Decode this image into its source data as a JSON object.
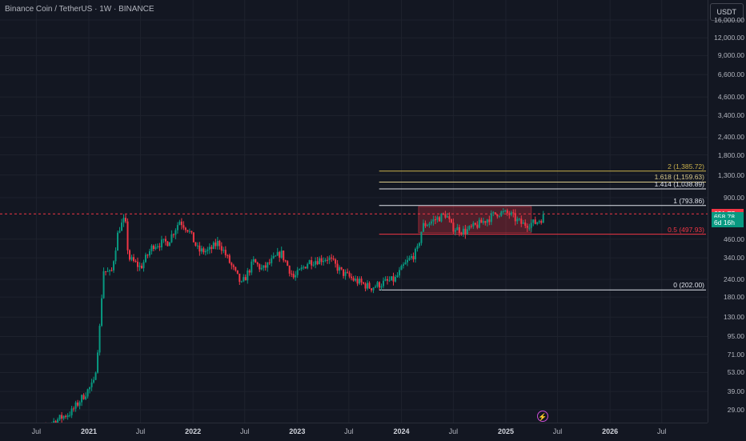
{
  "header": {
    "title": "Binance Coin / TetherUS · 1W · BINANCE"
  },
  "price_axis": {
    "currency": "USDT",
    "ticks": [
      "16,000.00",
      "12,000.00",
      "9,000.00",
      "6,600.00",
      "4,600.00",
      "3,400.00",
      "2,400.00",
      "1,800.00",
      "1,300.00",
      "900.00",
      "460.00",
      "340.00",
      "240.00",
      "180.00",
      "130.00",
      "95.00",
      "71.00",
      "53.00",
      "39.00",
      "29.00"
    ],
    "tick_values": [
      16000,
      12000,
      9000,
      6600,
      4600,
      3400,
      2400,
      1800,
      1300,
      900,
      460,
      340,
      240,
      180,
      130,
      95,
      71,
      53,
      39,
      29
    ],
    "badges": [
      {
        "label": "691.77",
        "value": 691.77,
        "color": "#f23645"
      },
      {
        "label": "658.78",
        "value": 658.78,
        "color": "#089981"
      },
      {
        "label": "6d 16h",
        "value": 600,
        "color": "#089981"
      }
    ]
  },
  "time_axis": {
    "ticks": [
      {
        "label": "Jul",
        "date": "2020-07-01",
        "year": false
      },
      {
        "label": "2021",
        "date": "2021-01-01",
        "year": true
      },
      {
        "label": "Jul",
        "date": "2021-07-01",
        "year": false
      },
      {
        "label": "2022",
        "date": "2022-01-01",
        "year": true
      },
      {
        "label": "Jul",
        "date": "2022-07-01",
        "year": false
      },
      {
        "label": "2023",
        "date": "2023-01-01",
        "year": true
      },
      {
        "label": "Jul",
        "date": "2023-07-01",
        "year": false
      },
      {
        "label": "2024",
        "date": "2024-01-01",
        "year": true
      },
      {
        "label": "Jul",
        "date": "2024-07-01",
        "year": false
      },
      {
        "label": "2025",
        "date": "2025-01-01",
        "year": true
      },
      {
        "label": "Jul",
        "date": "2025-07-01",
        "year": false
      },
      {
        "label": "2026",
        "date": "2026-01-01",
        "year": true
      },
      {
        "label": "Jul",
        "date": "2026-07-01",
        "year": false
      }
    ]
  },
  "fib_levels": [
    {
      "label": "2 (1,385.72)",
      "value": 1385.72,
      "color": "#c9b04b"
    },
    {
      "label": "1.618 (1,159.63)",
      "value": 1159.63,
      "color": "#d9c98a"
    },
    {
      "label": "1.414 (1,038.89)",
      "value": 1038.89,
      "color": "#e0e3eb"
    },
    {
      "label": "1 (793.86)",
      "value": 793.86,
      "color": "#e0e3eb"
    },
    {
      "label": "0.5 (497.93)",
      "value": 497.93,
      "color": "#f23645"
    },
    {
      "label": "0 (202.00)",
      "value": 202.0,
      "color": "#e0e3eb"
    }
  ],
  "range_box": {
    "top": 780,
    "bottom": 510,
    "from": "2024-03-01",
    "to": "2025-03-31",
    "color": "#f23645"
  },
  "current_price_line": {
    "value": 691.77,
    "color": "#f23645"
  },
  "chart_data": {
    "type": "candlestick",
    "scale": "log",
    "up_color": "#089981",
    "down_color": "#f23645",
    "anchors": [
      [
        "2020-06-01",
        16
      ],
      [
        "2020-08-15",
        23
      ],
      [
        "2020-11-01",
        28
      ],
      [
        "2020-12-20",
        38
      ],
      [
        "2021-01-20",
        45
      ],
      [
        "2021-02-10",
        120
      ],
      [
        "2021-02-20",
        280
      ],
      [
        "2021-03-20",
        260
      ],
      [
        "2021-04-15",
        540
      ],
      [
        "2021-05-08",
        640
      ],
      [
        "2021-05-20",
        340
      ],
      [
        "2021-07-01",
        290
      ],
      [
        "2021-08-15",
        420
      ],
      [
        "2021-09-10",
        430
      ],
      [
        "2021-10-05",
        440
      ],
      [
        "2021-11-15",
        620
      ],
      [
        "2021-12-15",
        540
      ],
      [
        "2022-01-20",
        380
      ],
      [
        "2022-02-25",
        380
      ],
      [
        "2022-04-01",
        440
      ],
      [
        "2022-05-15",
        300
      ],
      [
        "2022-06-20",
        220
      ],
      [
        "2022-08-01",
        320
      ],
      [
        "2022-09-01",
        280
      ],
      [
        "2022-11-05",
        370
      ],
      [
        "2022-12-20",
        245
      ],
      [
        "2023-02-10",
        320
      ],
      [
        "2023-04-20",
        340
      ],
      [
        "2023-06-05",
        270
      ],
      [
        "2023-07-15",
        240
      ],
      [
        "2023-09-15",
        210
      ],
      [
        "2023-10-25",
        225
      ],
      [
        "2023-12-10",
        240
      ],
      [
        "2024-01-10",
        300
      ],
      [
        "2024-02-25",
        380
      ],
      [
        "2024-03-15",
        570
      ],
      [
        "2024-06-05",
        690
      ],
      [
        "2024-06-25",
        560
      ],
      [
        "2024-08-10",
        520
      ],
      [
        "2024-10-01",
        590
      ],
      [
        "2024-12-04",
        710
      ],
      [
        "2025-01-15",
        690
      ],
      [
        "2025-02-10",
        620
      ],
      [
        "2025-03-01",
        585
      ],
      [
        "2025-04-15",
        600
      ],
      [
        "2025-05-12",
        658.78
      ]
    ]
  }
}
